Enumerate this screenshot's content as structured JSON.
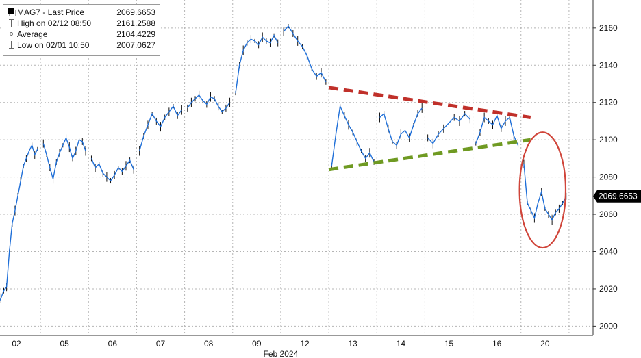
{
  "chart_data": {
    "type": "line",
    "x_categories": [
      "02",
      "05",
      "06",
      "07",
      "08",
      "09",
      "12",
      "13",
      "14",
      "15",
      "16",
      "20"
    ],
    "xlabel": "Feb 2024",
    "ylim": [
      1995,
      2175
    ],
    "yticks": [
      2000,
      2020,
      2040,
      2060,
      2080,
      2100,
      2120,
      2140,
      2160
    ],
    "grid": true,
    "legend_position": "top-left",
    "legend": {
      "title": "MAG7 - Last Price",
      "title_value": "2069.6653",
      "high_label": "High on 02/12 08:50",
      "high_value": "2161.2588",
      "average_label": "Average",
      "average_value": "2104.4229",
      "low_label": "Low on 02/01 10:50",
      "low_value": "2007.0627"
    },
    "last_price_label": "2069.6653",
    "series": [
      {
        "values_per_day": [
          [
            2007,
            2012,
            2015,
            2019,
            2021,
            2040,
            2055,
            2062,
            2070,
            2078,
            2086,
            2090,
            2094,
            2097,
            2092,
            2095
          ],
          [
            2098,
            2092,
            2085,
            2079,
            2088,
            2093,
            2097,
            2101,
            2096,
            2090,
            2094,
            2100,
            2099,
            2094
          ],
          [
            2090,
            2085,
            2087,
            2082,
            2080,
            2078,
            2081,
            2085,
            2083,
            2086,
            2089,
            2084
          ],
          [
            2094,
            2102,
            2108,
            2114,
            2110,
            2107,
            2112,
            2115,
            2118,
            2113,
            2116
          ],
          [
            2117,
            2120,
            2122,
            2124,
            2121,
            2119,
            2123,
            2122,
            2118,
            2115,
            2117,
            2120
          ],
          [
            2125,
            2140,
            2148,
            2152,
            2154,
            2153,
            2151,
            2155,
            2153,
            2152,
            2156,
            2152
          ],
          [
            2158,
            2161,
            2157,
            2153,
            2150,
            2145,
            2138,
            2134,
            2136,
            2131
          ],
          [
            2086,
            2103,
            2118,
            2113,
            2108,
            2104,
            2099,
            2094,
            2090,
            2093,
            2088
          ],
          [
            2112,
            2114,
            2106,
            2099,
            2097,
            2103,
            2105,
            2101,
            2108,
            2114,
            2117
          ],
          [
            2101,
            2098,
            2103,
            2106,
            2109,
            2112,
            2110,
            2114,
            2111
          ],
          [
            2098,
            2104,
            2112,
            2110,
            2108,
            2113,
            2106,
            2110,
            2112,
            2102,
            2097
          ],
          [
            2087,
            2066,
            2062,
            2058,
            2066,
            2072,
            2063,
            2060,
            2057,
            2061,
            2063,
            2066,
            2069.6653
          ]
        ]
      }
    ],
    "annotations": [
      {
        "type": "dashed-line",
        "color": "#c0302a",
        "from": [
          7.0,
          2128
        ],
        "to": [
          11.2,
          2112
        ]
      },
      {
        "type": "dashed-line",
        "color": "#6f9a22",
        "from": [
          7.0,
          2084
        ],
        "to": [
          11.2,
          2100
        ]
      },
      {
        "type": "ellipse",
        "color": "#d0453a",
        "center": [
          11.45,
          2073
        ],
        "radius_days": 0.48,
        "radius_value": 31
      }
    ],
    "colors": {
      "line": "#1f6fd8",
      "candles": "#111111",
      "grid": "#b4b4b4",
      "label_box": "#000000"
    }
  }
}
